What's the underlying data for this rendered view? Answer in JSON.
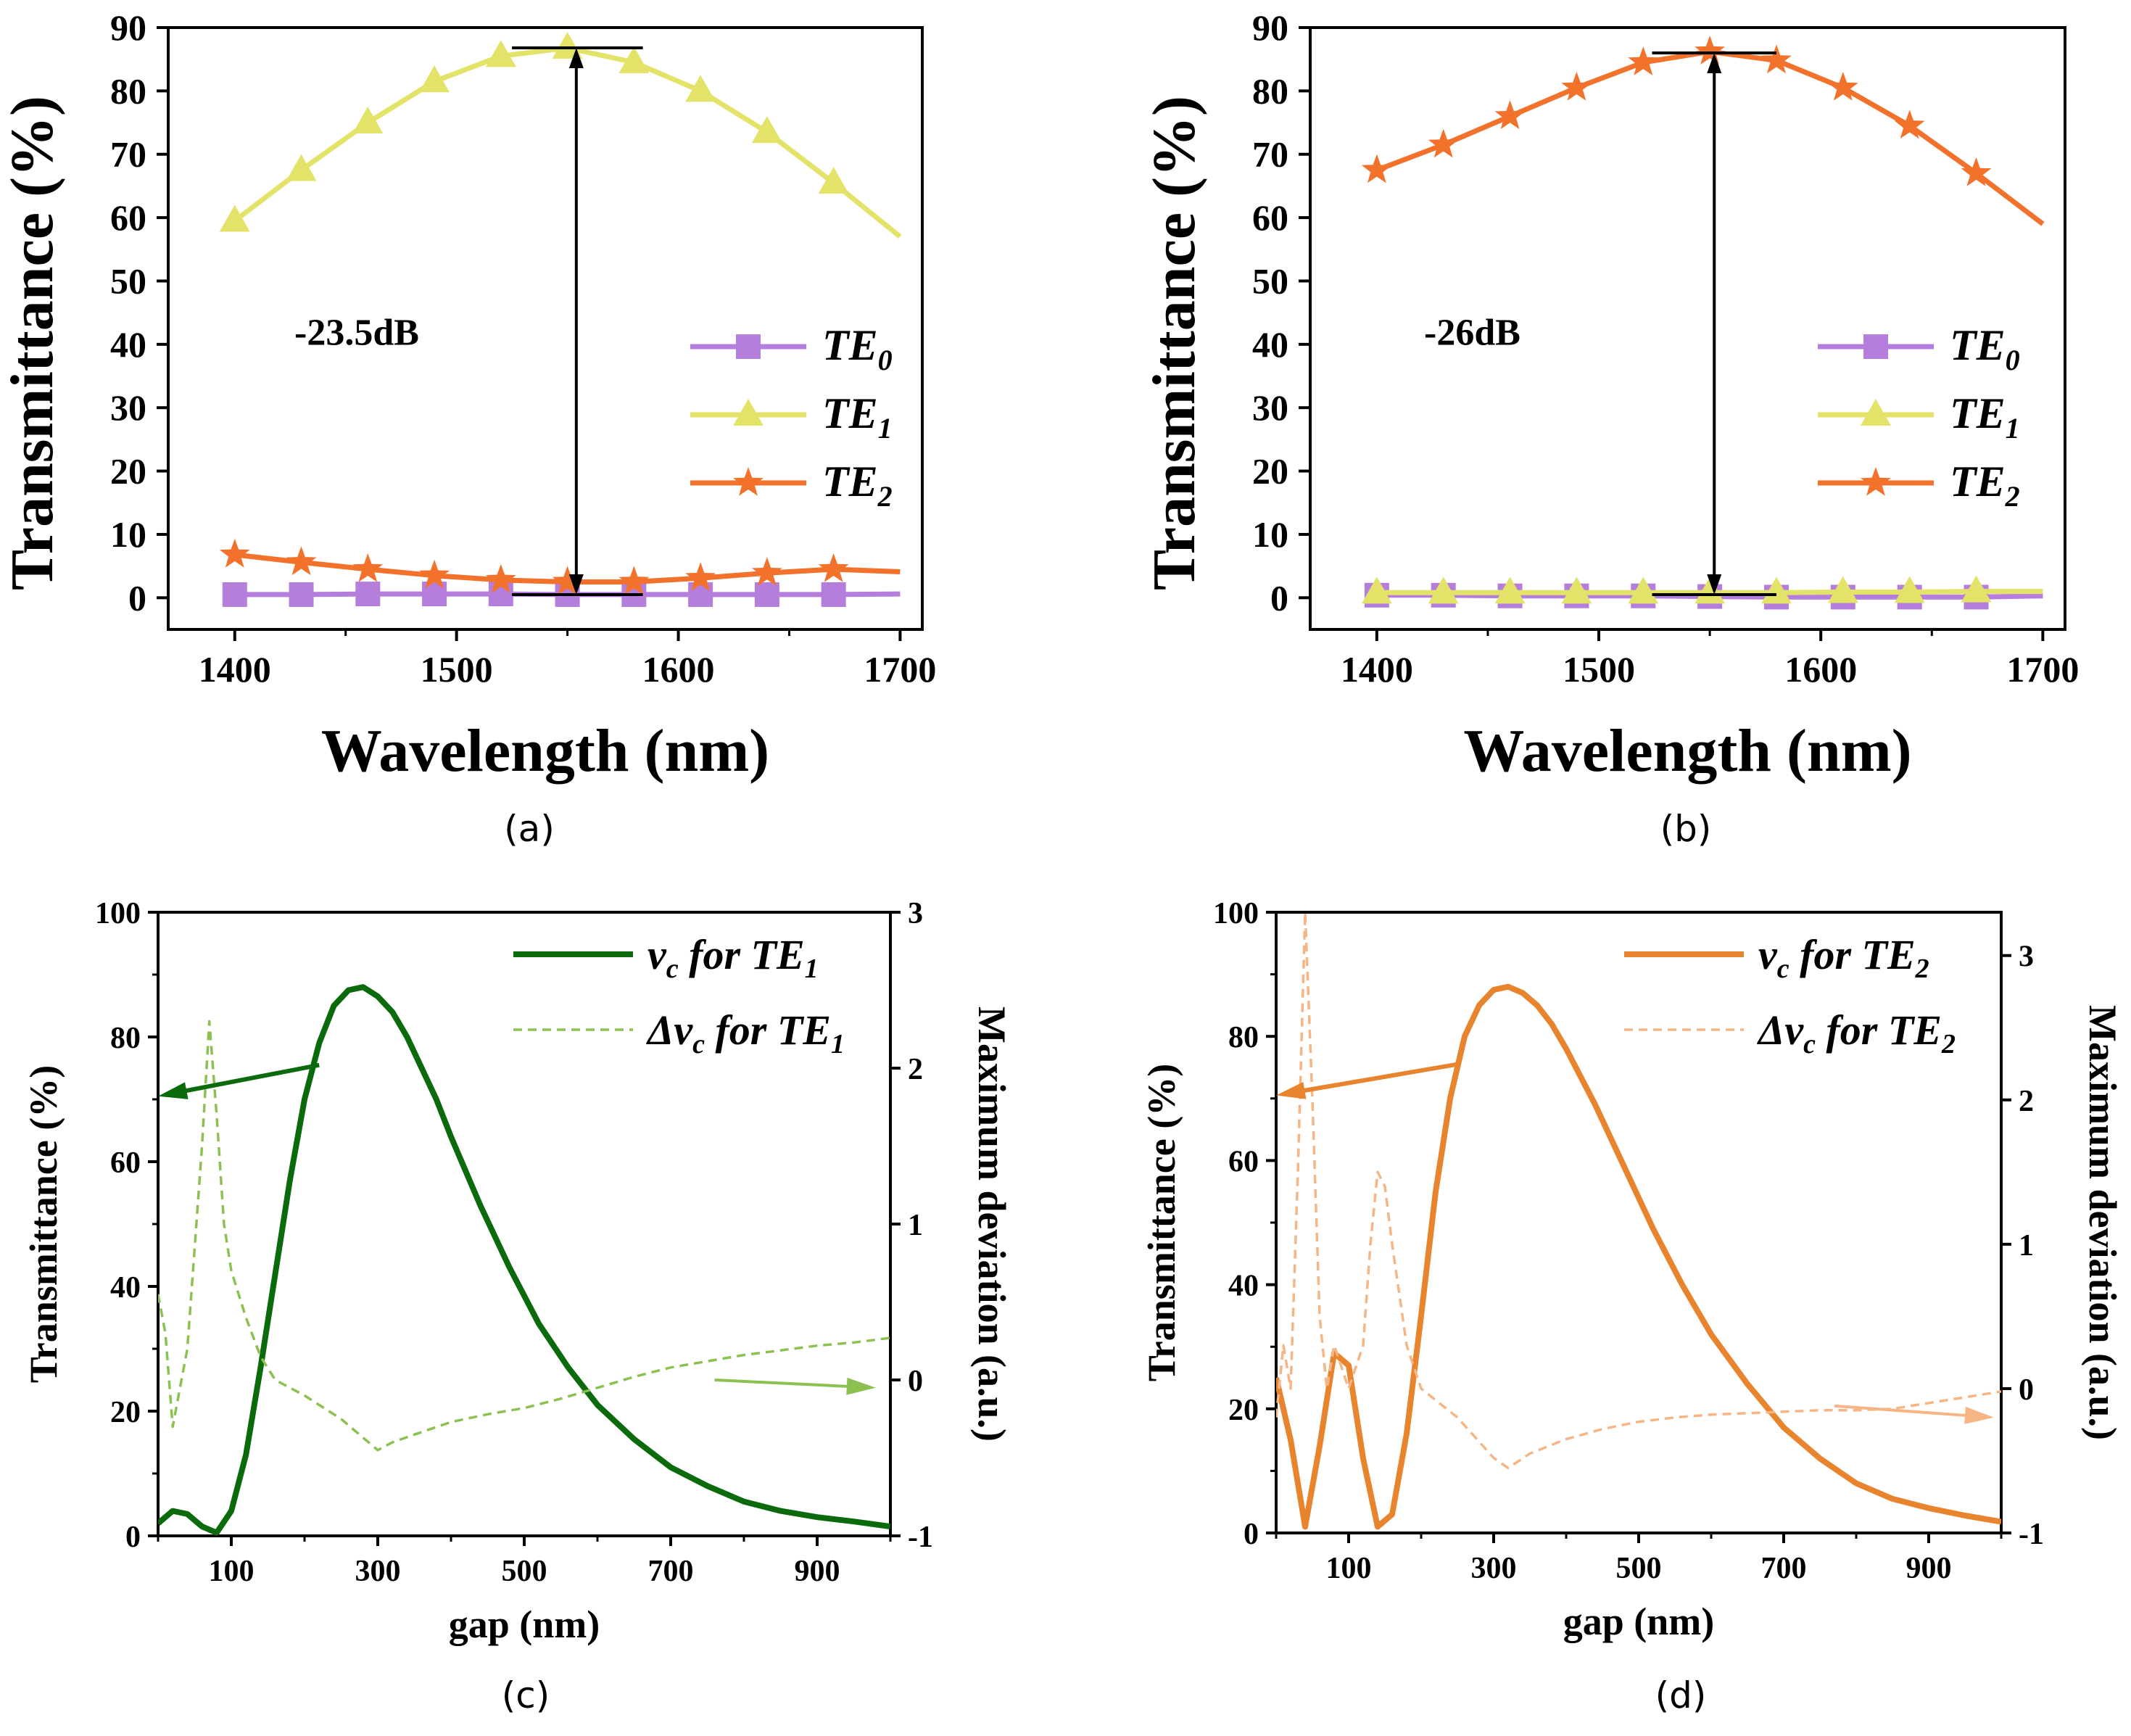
{
  "colors": {
    "purple": "#B57EDC",
    "yellow": "#E3E36A",
    "orange": "#F2722B",
    "green": "#0B6A0B",
    "green_light": "#8CC152",
    "orange_c": "#E8842E",
    "orange_light": "#F5B585",
    "black": "#000000"
  },
  "chart_data": [
    {
      "id": "a",
      "type": "line",
      "panel_label": "(a)",
      "xlabel": "Wavelength (nm)",
      "ylabel": "Transmittance (%)",
      "xlim": [
        1370,
        1710
      ],
      "ylim": [
        -5,
        90
      ],
      "xticks": [
        1400,
        1500,
        1600,
        1700
      ],
      "yticks": [
        0,
        10,
        20,
        30,
        40,
        50,
        60,
        70,
        80,
        90
      ],
      "annotation": "-23.5dB",
      "legend": {
        "position": "right",
        "entries": [
          {
            "main": "TE",
            "sub": "0",
            "color": "purple",
            "marker": "square"
          },
          {
            "main": "TE",
            "sub": "1",
            "color": "yellow",
            "marker": "triangle"
          },
          {
            "main": "TE",
            "sub": "2",
            "color": "orange",
            "marker": "star"
          }
        ]
      },
      "series": [
        {
          "name": "TE0",
          "color": "purple",
          "marker": "square",
          "x": [
            1400,
            1430,
            1460,
            1490,
            1520,
            1550,
            1580,
            1610,
            1640,
            1670,
            1700
          ],
          "y": [
            0.5,
            0.5,
            0.6,
            0.6,
            0.6,
            0.5,
            0.5,
            0.5,
            0.5,
            0.5,
            0.6
          ]
        },
        {
          "name": "TE1",
          "color": "yellow",
          "marker": "triangle",
          "x": [
            1400,
            1430,
            1460,
            1490,
            1520,
            1550,
            1580,
            1610,
            1640,
            1670,
            1700
          ],
          "y": [
            59.5,
            67.5,
            75,
            81.5,
            85.5,
            86.8,
            84.5,
            80,
            73.5,
            65.5,
            57
          ]
        },
        {
          "name": "TE2",
          "color": "orange",
          "marker": "star",
          "x": [
            1400,
            1430,
            1460,
            1490,
            1520,
            1550,
            1580,
            1610,
            1640,
            1670,
            1700
          ],
          "y": [
            6.8,
            5.6,
            4.5,
            3.5,
            2.8,
            2.5,
            2.5,
            3.1,
            3.9,
            4.5,
            4.1
          ]
        }
      ],
      "arrow": {
        "x": 1554,
        "y_top": 86.8,
        "y_bottom": 0.5,
        "cap_x0": 1525,
        "cap_x1": 1584
      },
      "annotation_pos": [
        1455,
        42
      ]
    },
    {
      "id": "b",
      "type": "line",
      "panel_label": "(b)",
      "xlabel": "Wavelength (nm)",
      "ylabel": "Transmittance (%)",
      "xlim": [
        1370,
        1710
      ],
      "ylim": [
        -5,
        90
      ],
      "xticks": [
        1400,
        1500,
        1600,
        1700
      ],
      "yticks": [
        0,
        10,
        20,
        30,
        40,
        50,
        60,
        70,
        80,
        90
      ],
      "annotation": "-26dB",
      "legend": {
        "position": "right",
        "entries": [
          {
            "main": "TE",
            "sub": "0",
            "color": "purple",
            "marker": "square"
          },
          {
            "main": "TE",
            "sub": "1",
            "color": "yellow",
            "marker": "triangle"
          },
          {
            "main": "TE",
            "sub": "2",
            "color": "orange",
            "marker": "star"
          }
        ]
      },
      "series": [
        {
          "name": "TE0",
          "color": "purple",
          "marker": "square",
          "x": [
            1400,
            1430,
            1460,
            1490,
            1520,
            1550,
            1580,
            1610,
            1640,
            1670,
            1700
          ],
          "y": [
            0.4,
            0.4,
            0.3,
            0.3,
            0.3,
            0.2,
            0.1,
            0.1,
            0.1,
            0.1,
            0.3
          ]
        },
        {
          "name": "TE1",
          "color": "yellow",
          "marker": "triangle",
          "x": [
            1400,
            1430,
            1460,
            1490,
            1520,
            1550,
            1580,
            1610,
            1640,
            1670,
            1700
          ],
          "y": [
            0.8,
            0.8,
            0.8,
            0.8,
            0.8,
            0.8,
            0.8,
            0.9,
            0.9,
            1.0,
            1.0
          ]
        },
        {
          "name": "TE2",
          "color": "orange",
          "marker": "star",
          "x": [
            1400,
            1430,
            1460,
            1490,
            1520,
            1550,
            1580,
            1610,
            1640,
            1670,
            1700
          ],
          "y": [
            67.5,
            71.5,
            76,
            80.5,
            84.5,
            86.2,
            84.8,
            80.5,
            74.5,
            67,
            59
          ]
        }
      ],
      "arrow": {
        "x": 1552,
        "y_top": 86.0,
        "y_bottom": 0.5,
        "cap_x0": 1524,
        "cap_x1": 1580
      },
      "annotation_pos": [
        1443,
        42
      ]
    },
    {
      "id": "c",
      "type": "line",
      "panel_label": "(c)",
      "xlabel": "gap (nm)",
      "ylabel": "Transmittance (%)",
      "ylabel_right": "Maximum deviation (a.u.)",
      "xlim": [
        0,
        1000
      ],
      "ylim": [
        0,
        100
      ],
      "ylim_right": [
        -1,
        3
      ],
      "xticks": [
        100,
        300,
        500,
        700,
        900
      ],
      "yticks": [
        0,
        20,
        40,
        60,
        80,
        100
      ],
      "yticks_right": [
        -1,
        0,
        1,
        2,
        3
      ],
      "legend": {
        "position": "top-right",
        "entries": [
          {
            "main": "ν",
            "sub": "c",
            "rest": " for TE",
            "rest_sub": "1",
            "style": "solid",
            "color": "green"
          },
          {
            "main": "Δν",
            "sub": "c",
            "rest": " for TE",
            "rest_sub": "1",
            "style": "dashed",
            "color": "green_light"
          }
        ]
      },
      "series": [
        {
          "name": "nu_c for TE1",
          "axis": "left",
          "color": "green",
          "style": "solid",
          "x": [
            0,
            10,
            20,
            40,
            60,
            80,
            100,
            120,
            140,
            160,
            180,
            200,
            220,
            240,
            260,
            280,
            300,
            320,
            340,
            360,
            380,
            400,
            440,
            480,
            520,
            560,
            600,
            650,
            700,
            750,
            800,
            850,
            900,
            950,
            1000
          ],
          "y": [
            2,
            3,
            4,
            3.5,
            1.5,
            0.5,
            4,
            13,
            27,
            42,
            57,
            70,
            79,
            85,
            87.5,
            88,
            86.5,
            84,
            80,
            75,
            70,
            64,
            53,
            43,
            34,
            27,
            21,
            15.5,
            11,
            8,
            5.5,
            4,
            3,
            2.3,
            1.5
          ]
        },
        {
          "name": "Delta nu_c for TE1",
          "axis": "right",
          "color": "green_light",
          "style": "dashed",
          "x": [
            0,
            10,
            20,
            40,
            60,
            70,
            80,
            90,
            100,
            120,
            140,
            160,
            200,
            250,
            300,
            320,
            350,
            400,
            450,
            500,
            550,
            600,
            650,
            700,
            750,
            800,
            850,
            900,
            950,
            1000
          ],
          "y": [
            0.55,
            0.3,
            -0.3,
            0.2,
            1.5,
            2.3,
            1.7,
            1.0,
            0.7,
            0.4,
            0.15,
            0.0,
            -0.1,
            -0.25,
            -0.45,
            -0.4,
            -0.35,
            -0.27,
            -0.22,
            -0.18,
            -0.12,
            -0.05,
            0.02,
            0.08,
            0.12,
            0.16,
            0.19,
            0.22,
            0.24,
            0.27
          ]
        }
      ],
      "arrows": [
        {
          "axis": "left",
          "from": [
            220,
            75.5
          ],
          "to": [
            0,
            70.5
          ]
        },
        {
          "axis": "right",
          "from": [
            760,
            0.0
          ],
          "to": [
            980,
            -0.05
          ]
        }
      ]
    },
    {
      "id": "d",
      "type": "line",
      "panel_label": "(d)",
      "xlabel": "gap (nm)",
      "ylabel": "Transmittance (%)",
      "ylabel_right": "Maximum deviation (a.u.)",
      "xlim": [
        0,
        1000
      ],
      "ylim": [
        0,
        100
      ],
      "ylim_right": [
        -1,
        3.3
      ],
      "xticks": [
        100,
        300,
        500,
        700,
        900
      ],
      "yticks": [
        0,
        20,
        40,
        60,
        80,
        100
      ],
      "yticks_right": [
        -1,
        0,
        1,
        2,
        3
      ],
      "legend": {
        "position": "top-right",
        "entries": [
          {
            "main": "ν",
            "sub": "c",
            "rest": " for TE",
            "rest_sub": "2",
            "style": "solid",
            "color": "orange_c"
          },
          {
            "main": "Δν",
            "sub": "c",
            "rest": " for TE",
            "rest_sub": "2",
            "style": "dashed",
            "color": "orange_light"
          }
        ]
      },
      "series": [
        {
          "name": "nu_c for TE2",
          "axis": "left",
          "color": "orange_c",
          "style": "solid",
          "x": [
            0,
            20,
            40,
            60,
            80,
            100,
            120,
            140,
            160,
            180,
            200,
            220,
            240,
            260,
            280,
            300,
            320,
            340,
            360,
            380,
            400,
            440,
            480,
            520,
            560,
            600,
            650,
            700,
            750,
            800,
            850,
            900,
            950,
            1000
          ],
          "y": [
            25,
            15,
            1,
            14,
            29,
            27,
            12,
            1,
            3,
            16,
            35,
            55,
            70,
            80,
            85,
            87.5,
            88,
            87,
            85,
            82,
            78,
            69,
            59,
            49,
            40,
            32,
            24,
            17,
            12,
            8,
            5.5,
            4,
            2.8,
            1.8
          ]
        },
        {
          "name": "Delta nu_c for TE2",
          "axis": "right",
          "color": "orange_light",
          "style": "dashed",
          "x": [
            0,
            10,
            20,
            30,
            40,
            50,
            60,
            70,
            80,
            100,
            120,
            130,
            140,
            150,
            160,
            180,
            200,
            250,
            300,
            320,
            350,
            400,
            450,
            500,
            550,
            600,
            650,
            700,
            750,
            800,
            850,
            900,
            950,
            1000
          ],
          "y": [
            -0.2,
            0.3,
            0.0,
            1.5,
            3.3,
            2.0,
            0.5,
            0.0,
            0.3,
            0.0,
            0.3,
            1.0,
            1.5,
            1.4,
            1.0,
            0.3,
            0.0,
            -0.2,
            -0.48,
            -0.55,
            -0.45,
            -0.35,
            -0.28,
            -0.23,
            -0.2,
            -0.18,
            -0.17,
            -0.16,
            -0.15,
            -0.15,
            -0.14,
            -0.1,
            -0.06,
            -0.02
          ]
        }
      ],
      "arrows": [
        {
          "axis": "left",
          "from": [
            250,
            75.5
          ],
          "to": [
            0,
            70.5
          ]
        },
        {
          "axis": "right",
          "from": [
            770,
            -0.12
          ],
          "to": [
            990,
            -0.2
          ]
        }
      ]
    }
  ]
}
